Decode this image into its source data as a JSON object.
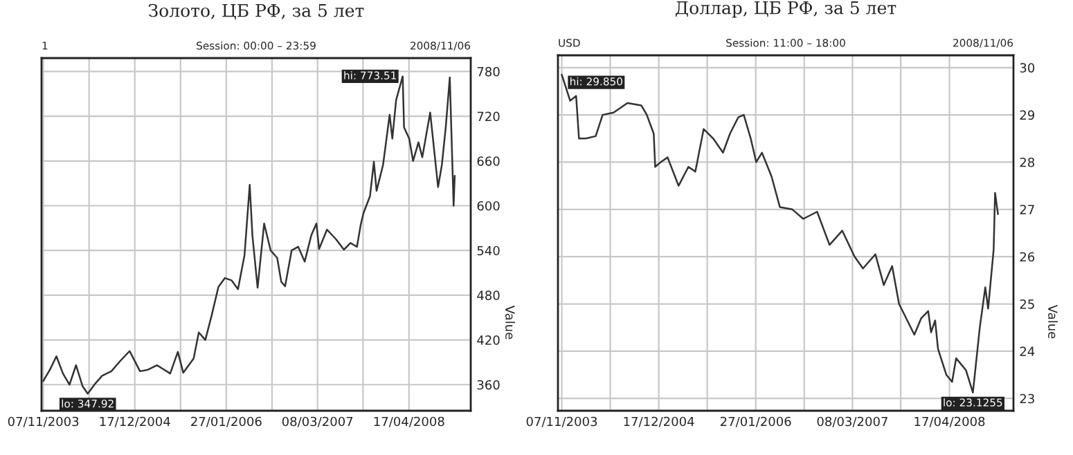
{
  "chart_data": [
    {
      "type": "line",
      "title": "Золото, ЦБ РФ, за 5 лет",
      "ylabel": "Value",
      "annotations": [
        "1",
        "Session: 00:00 – 23:59",
        "2008/11/06",
        {
          "text": "hi: 773.51",
          "x": "2008-03-20",
          "y": 773.51
        },
        {
          "text": "lo: 347.92",
          "x": "2004-05-22",
          "y": 347.92
        }
      ],
      "x": [
        "2003-11-07",
        "2003-12-06",
        "2004-01-04",
        "2004-02-02",
        "2004-03-02",
        "2004-03-31",
        "2004-04-29",
        "2004-05-22",
        "2004-06-26",
        "2004-07-25",
        "2004-09-04",
        "2004-10-14",
        "2004-11-24",
        "2005-01-09",
        "2005-02-13",
        "2005-03-26",
        "2005-05-23",
        "2005-06-26",
        "2005-07-20",
        "2005-09-04",
        "2005-09-27",
        "2005-10-26",
        "2005-11-24",
        "2005-12-23",
        "2006-01-21",
        "2006-02-19",
        "2006-03-20",
        "2006-04-18",
        "2006-05-11",
        "2006-05-23",
        "2006-06-15",
        "2006-07-14",
        "2006-08-12",
        "2006-09-10",
        "2006-09-28",
        "2006-10-15",
        "2006-11-13",
        "2006-12-12",
        "2007-01-10",
        "2007-02-08",
        "2007-03-03",
        "2007-03-15",
        "2007-04-19",
        "2007-05-29",
        "2007-07-03",
        "2007-08-01",
        "2007-08-30",
        "2007-09-16",
        "2007-09-28",
        "2007-10-27",
        "2007-11-13",
        "2007-11-25",
        "2007-12-24",
        "2008-01-22",
        "2008-02-03",
        "2008-02-20",
        "2008-03-20",
        "2008-03-26",
        "2008-04-18",
        "2008-05-05",
        "2008-05-29",
        "2008-06-15",
        "2008-07-20",
        "2008-08-24",
        "2008-09-10",
        "2008-09-27",
        "2008-10-15",
        "2008-11-01",
        "2008-11-06"
      ],
      "series": [
        {
          "color": "#333333",
          "values": [
            365,
            380,
            398,
            375,
            360,
            386,
            358,
            347.92,
            362,
            372,
            378,
            392,
            405,
            378,
            380,
            386,
            375,
            404,
            376,
            395,
            430,
            420,
            454,
            491,
            503,
            500,
            488,
            534,
            628,
            560,
            490,
            576,
            540,
            530,
            498,
            492,
            540,
            545,
            525,
            560,
            576,
            542,
            568,
            555,
            541,
            550,
            545,
            575,
            590,
            613,
            659,
            620,
            655,
            722,
            690,
            742,
            773.51,
            705,
            690,
            660,
            685,
            665,
            725,
            625,
            655,
            705,
            772,
            600,
            640
          ]
        }
      ],
      "xlim": [
        "2003-10-30",
        "2009-01-16"
      ],
      "xticks": [
        {
          "value": "2003-11-07",
          "label": "07/11/2003"
        },
        {
          "value": "2004-05-28",
          "label": null
        },
        {
          "value": "2004-12-17",
          "label": "17/12/2004"
        },
        {
          "value": "2005-07-08",
          "label": null
        },
        {
          "value": "2006-01-27",
          "label": "27/01/2006"
        },
        {
          "value": "2006-08-18",
          "label": null
        },
        {
          "value": "2007-03-08",
          "label": "08/03/2007"
        },
        {
          "value": "2007-09-26",
          "label": null
        },
        {
          "value": "2008-04-17",
          "label": "17/04/2008"
        }
      ],
      "ylim": [
        325,
        798
      ],
      "yticks": [
        360,
        420,
        480,
        540,
        600,
        660,
        720,
        780
      ],
      "grid": true
    },
    {
      "type": "line",
      "title": "Доллар, ЦБ РФ, за 5 лет",
      "ylabel": "Value",
      "annotations": [
        "USD",
        "Session: 11:00 – 18:00",
        "2008/11/06",
        {
          "text": "hi: 29.850",
          "x": "2003-11-07",
          "y": 29.85
        },
        {
          "text": "lo: 23.1255",
          "x": "2008-07-24",
          "y": 23.1255
        }
      ],
      "x": [
        "2003-11-07",
        "2003-12-12",
        "2004-01-06",
        "2004-01-18",
        "2004-02-16",
        "2004-03-28",
        "2004-04-26",
        "2004-06-11",
        "2004-08-08",
        "2004-10-05",
        "2004-10-28",
        "2004-11-26",
        "2004-12-02",
        "2004-12-25",
        "2005-01-23",
        "2005-03-10",
        "2005-04-20",
        "2005-05-19",
        "2005-06-23",
        "2005-08-02",
        "2005-09-12",
        "2005-10-11",
        "2005-11-15",
        "2005-12-08",
        "2006-01-06",
        "2006-01-29",
        "2006-02-22",
        "2006-04-03",
        "2006-05-08",
        "2006-06-29",
        "2006-08-14",
        "2006-10-11",
        "2006-12-02",
        "2007-01-24",
        "2007-03-17",
        "2007-04-21",
        "2007-06-12",
        "2007-07-17",
        "2007-08-21",
        "2007-09-19",
        "2007-11-22",
        "2007-12-21",
        "2008-01-19",
        "2008-01-31",
        "2008-02-17",
        "2008-02-29",
        "2008-04-04",
        "2008-04-28",
        "2008-05-15",
        "2008-06-25",
        "2008-07-24",
        "2008-07-30",
        "2008-08-22",
        "2008-09-14",
        "2008-09-26",
        "2008-10-19",
        "2008-10-25",
        "2008-11-06"
      ],
      "series": [
        {
          "color": "#333333",
          "values": [
            29.85,
            29.3,
            29.4,
            28.5,
            28.5,
            28.55,
            29.0,
            29.05,
            29.25,
            29.2,
            29.0,
            28.6,
            27.9,
            28.0,
            28.1,
            27.5,
            27.9,
            27.8,
            28.7,
            28.5,
            28.2,
            28.6,
            28.95,
            29.0,
            28.5,
            28.0,
            28.2,
            27.7,
            27.05,
            27.0,
            26.8,
            26.95,
            26.25,
            26.55,
            26.0,
            25.75,
            26.05,
            25.4,
            25.8,
            25.0,
            24.35,
            24.7,
            24.85,
            24.4,
            24.65,
            24.05,
            23.5,
            23.35,
            23.85,
            23.6,
            23.1255,
            23.4,
            24.5,
            25.35,
            24.9,
            26.15,
            27.35,
            26.9
          ]
        }
      ],
      "xlim": [
        "2003-10-22",
        "2009-01-10"
      ],
      "xticks": [
        {
          "value": "2003-11-07",
          "label": "07/11/2003"
        },
        {
          "value": "2004-05-28",
          "label": null
        },
        {
          "value": "2004-12-17",
          "label": "17/12/2004"
        },
        {
          "value": "2005-07-08",
          "label": null
        },
        {
          "value": "2006-01-27",
          "label": "27/01/2006"
        },
        {
          "value": "2006-08-18",
          "label": null
        },
        {
          "value": "2007-03-08",
          "label": "08/03/2007"
        },
        {
          "value": "2007-09-26",
          "label": null
        },
        {
          "value": "2008-04-17",
          "label": "17/04/2008"
        }
      ],
      "ylim": [
        22.74,
        30.26
      ],
      "yticks": [
        23,
        24,
        25,
        26,
        27,
        28,
        29,
        30
      ],
      "grid": true
    }
  ]
}
